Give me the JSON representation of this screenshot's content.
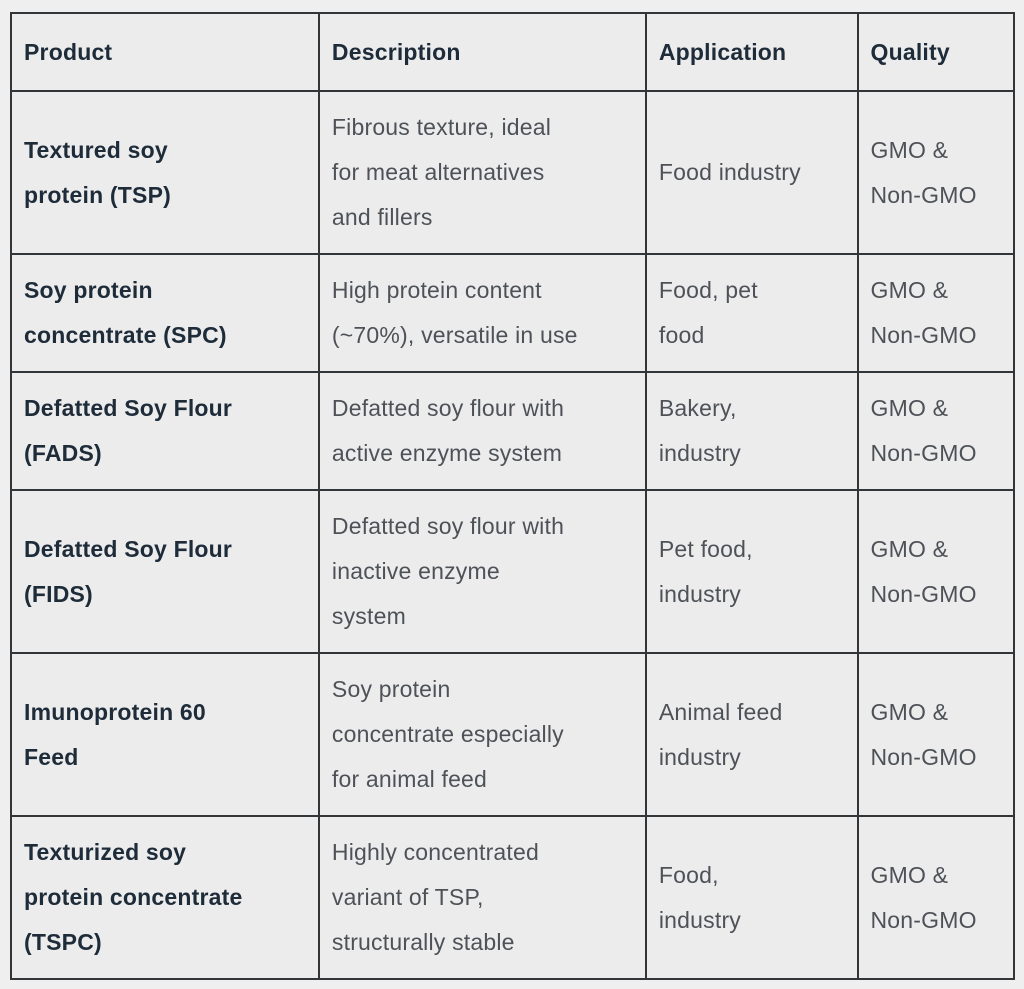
{
  "table": {
    "columns": [
      "Product",
      "Description",
      "Application",
      "Quality"
    ],
    "rows": [
      {
        "product": "Textured soy\nprotein (TSP)",
        "description": "Fibrous texture, ideal\nfor meat alternatives\nand fillers",
        "application": "Food industry",
        "quality": "GMO &\nNon-GMO"
      },
      {
        "product": "Soy protein\nconcentrate (SPC)",
        "description": "High protein content\n(~70%), versatile in use",
        "application": "Food, pet\nfood",
        "quality": "GMO &\nNon-GMO"
      },
      {
        "product": "Defatted Soy Flour\n(FADS)",
        "description": "Defatted soy flour with\nactive enzyme system",
        "application": "Bakery,\nindustry",
        "quality": "GMO &\nNon-GMO"
      },
      {
        "product": "Defatted Soy Flour\n(FIDS)",
        "description": "Defatted soy flour with\ninactive enzyme\nsystem",
        "application": "Pet food,\nindustry",
        "quality": "GMO &\nNon-GMO"
      },
      {
        "product": "Imunoprotein 60\nFeed",
        "description": "Soy protein\nconcentrate especially\nfor animal feed",
        "application": "Animal feed\nindustry",
        "quality": "GMO &\nNon-GMO"
      },
      {
        "product": "Texturized soy\nprotein concentrate\n(TSPC)",
        "description": "Highly concentrated\nvariant of TSP,\nstructurally stable",
        "application": "Food,\nindustry",
        "quality": "GMO &\nNon-GMO"
      }
    ]
  },
  "colors": {
    "page_background": "#efefef",
    "cell_background": "#ececed",
    "border": "#333639",
    "heading_text": "#1e2b39",
    "body_text": "#4e5257"
  }
}
